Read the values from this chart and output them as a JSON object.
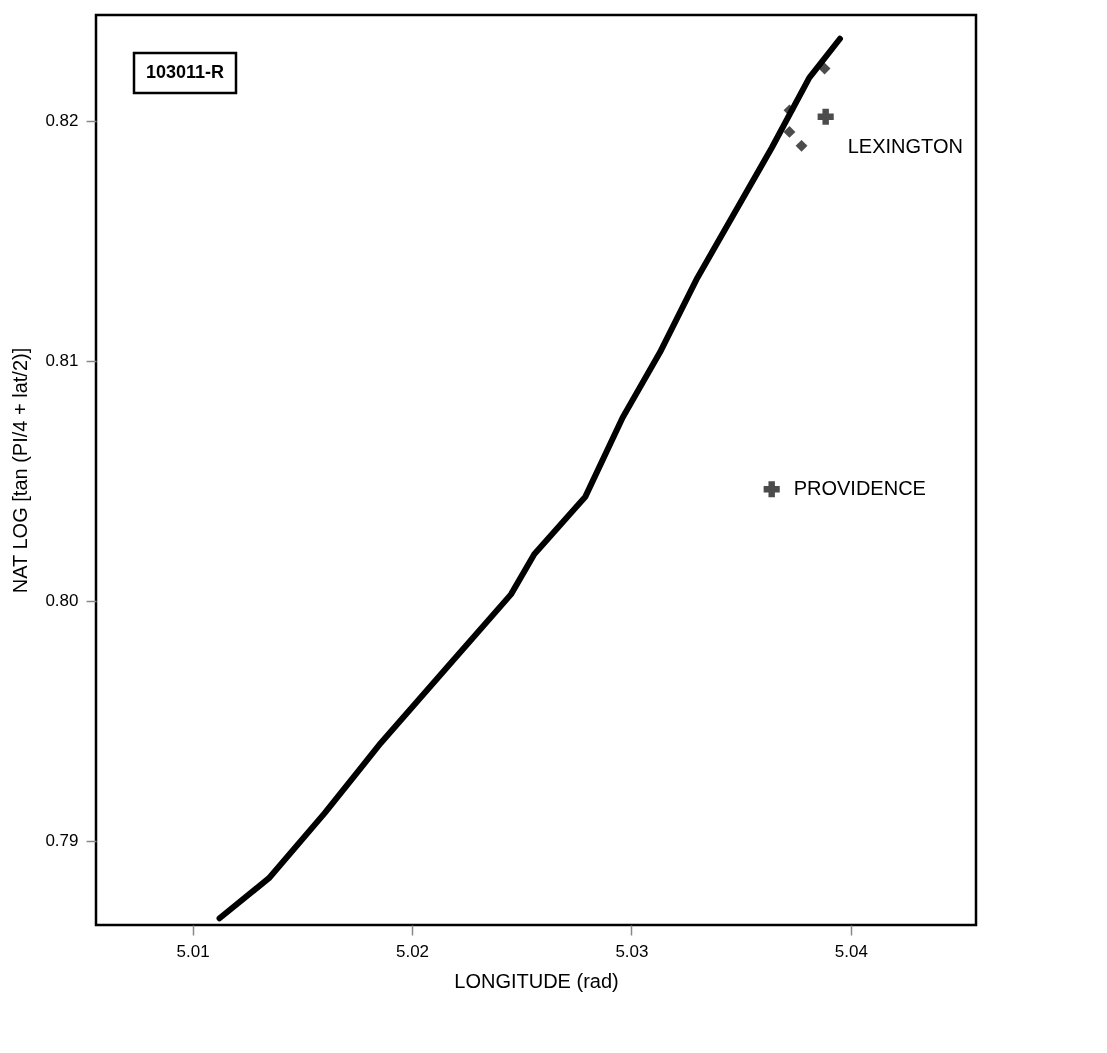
{
  "chart_data": {
    "type": "line",
    "xlabel": "LONGITUDE  (rad)",
    "ylabel": "NAT LOG [tan (PI/4 + lat/2)]",
    "xlim": [
      5.0056,
      5.0457
    ],
    "ylim": [
      0.7865,
      0.8244
    ],
    "xticks": [
      5.01,
      5.02,
      5.03,
      5.04
    ],
    "yticks": [
      0.79,
      {
        "value": 0.8,
        "label": "0.80"
      },
      0.81,
      0.82
    ],
    "grid": false,
    "line_style": "solid",
    "series": [
      {
        "color": "#000000",
        "marker": "none",
        "x": [
          5.01123,
          5.01348,
          5.01602,
          5.01857,
          5.02154,
          5.02451,
          5.02557,
          5.0279,
          5.0296,
          5.0313,
          5.033,
          5.0347,
          5.0364,
          5.0381,
          5.0395
        ],
        "values": [
          0.78678,
          0.78845,
          0.79116,
          0.79407,
          0.79717,
          0.80027,
          0.80194,
          0.80434,
          0.80764,
          0.81035,
          0.81345,
          0.81616,
          0.81888,
          0.82178,
          0.82341
        ]
      },
      {
        "type": "scatter",
        "color": "#000000",
        "marker": "diamond",
        "x": [
          5.0372,
          5.0372,
          5.03775,
          5.0388
        ],
        "values": [
          0.82043,
          0.81953,
          0.81895,
          0.82217
        ]
      },
      {
        "type": "scatter",
        "color": "#000000",
        "marker": "cross",
        "x": [
          5.03885,
          5.03639
        ],
        "values": [
          0.82016,
          0.80465
        ]
      }
    ],
    "annotations": [
      "103011-R",
      {
        "text": "LEXINGTON",
        "x": 5.03885,
        "y": 0.82016
      },
      {
        "text": "PROVIDENCE",
        "x": 5.03639,
        "y": 0.80465
      }
    ]
  }
}
